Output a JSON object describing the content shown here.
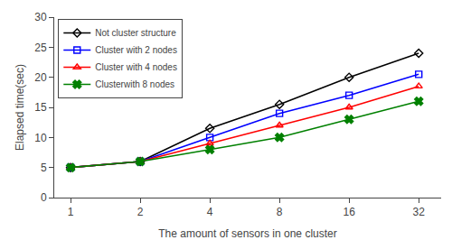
{
  "chart_data": {
    "type": "line",
    "x": [
      1,
      2,
      4,
      8,
      16,
      32
    ],
    "series": [
      {
        "name": "Not cluster structure",
        "color": "#000000",
        "marker": "diamond",
        "values": [
          5.0,
          6.0,
          11.5,
          15.5,
          20.0,
          24.0
        ]
      },
      {
        "name": "Cluster with 2 nodes",
        "color": "#0000ff",
        "marker": "square",
        "values": [
          5.0,
          6.0,
          10.0,
          14.0,
          17.0,
          20.5
        ]
      },
      {
        "name": "Cluster with 4 nodes",
        "color": "#ff0000",
        "marker": "triangle-up",
        "values": [
          5.0,
          6.0,
          9.0,
          12.0,
          15.0,
          18.5
        ]
      },
      {
        "name": "Clusterwith 8 nodes",
        "color": "#008000",
        "marker": "x",
        "values": [
          5.0,
          6.0,
          8.0,
          10.0,
          13.0,
          16.0
        ]
      }
    ],
    "x_label": "The amount of sensors in one cluster",
    "y_label": "Elapsed time(sec)",
    "log": "x",
    "xlim": [
      0.85,
      40
    ],
    "xticks": [
      1,
      2,
      4,
      8,
      16,
      32
    ],
    "ylim": [
      0,
      30
    ],
    "yticks": [
      0,
      5,
      10,
      15,
      20,
      25,
      30
    ],
    "grid": false,
    "legend": "upper left"
  }
}
